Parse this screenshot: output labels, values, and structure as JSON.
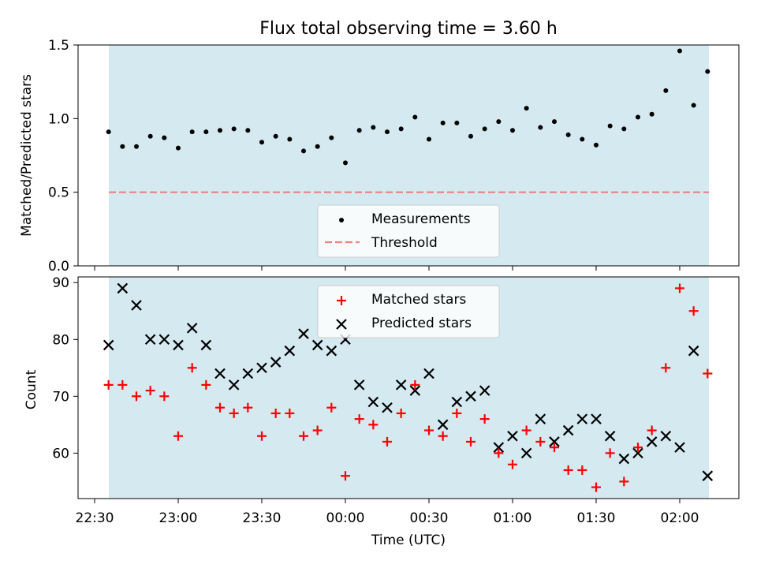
{
  "chart_data": [
    {
      "type": "scatter",
      "title": "Flux total observing time = 3.60 h",
      "ylabel": "Matched/Predicted stars",
      "ylim": [
        0.0,
        1.5
      ],
      "yticks": [
        0.0,
        0.5,
        1.0,
        1.5
      ],
      "ytick_labels": [
        "0.0",
        "0.5",
        "1.0",
        "1.5"
      ],
      "shaded_region_color": "#d4e9f0",
      "threshold": 0.5,
      "legend_position": "lower center",
      "legend": [
        {
          "label": "Measurements",
          "marker": "dot",
          "color": "#000000"
        },
        {
          "label": "Threshold",
          "marker": "dashed-line",
          "color": "#f08080"
        }
      ],
      "series": [
        {
          "name": "Measurements",
          "x": [
            "22:35",
            "22:40",
            "22:45",
            "22:50",
            "22:55",
            "23:00",
            "23:05",
            "23:10",
            "23:15",
            "23:20",
            "23:25",
            "23:30",
            "23:35",
            "23:40",
            "23:45",
            "23:50",
            "23:55",
            "00:00",
            "00:05",
            "00:10",
            "00:15",
            "00:20",
            "00:25",
            "00:30",
            "00:35",
            "00:40",
            "00:45",
            "00:50",
            "00:55",
            "01:00",
            "01:05",
            "01:10",
            "01:15",
            "01:20",
            "01:25",
            "01:30",
            "01:35",
            "01:40",
            "01:45",
            "01:50",
            "01:55",
            "02:00",
            "02:05",
            "02:10"
          ],
          "y": [
            0.91,
            0.81,
            0.81,
            0.88,
            0.87,
            0.8,
            0.91,
            0.91,
            0.92,
            0.93,
            0.92,
            0.84,
            0.88,
            0.86,
            0.78,
            0.81,
            0.87,
            0.7,
            0.92,
            0.94,
            0.91,
            0.93,
            1.01,
            0.86,
            0.97,
            0.97,
            0.88,
            0.93,
            0.98,
            0.92,
            1.07,
            0.94,
            0.98,
            0.89,
            0.86,
            0.82,
            0.95,
            0.93,
            1.01,
            1.03,
            1.19,
            1.46,
            1.09,
            1.32
          ]
        }
      ]
    },
    {
      "type": "scatter",
      "xlabel": "Time (UTC)",
      "ylabel": "Count",
      "ylim": [
        52,
        91
      ],
      "yticks": [
        60,
        70,
        80,
        90
      ],
      "ytick_labels": [
        "60",
        "70",
        "80",
        "90"
      ],
      "xticks": [
        "22:30",
        "23:00",
        "23:30",
        "00:00",
        "00:30",
        "01:00",
        "01:30",
        "02:00"
      ],
      "shaded_region_color": "#d4e9f0",
      "legend_position": "upper center",
      "legend": [
        {
          "label": "Matched stars",
          "marker": "plus",
          "color": "#ff0000"
        },
        {
          "label": "Predicted stars",
          "marker": "x",
          "color": "#000000"
        }
      ],
      "series": [
        {
          "name": "Matched stars",
          "x": [
            "22:35",
            "22:40",
            "22:45",
            "22:50",
            "22:55",
            "23:00",
            "23:05",
            "23:10",
            "23:15",
            "23:20",
            "23:25",
            "23:30",
            "23:35",
            "23:40",
            "23:45",
            "23:50",
            "23:55",
            "00:00",
            "00:05",
            "00:10",
            "00:15",
            "00:20",
            "00:25",
            "00:30",
            "00:35",
            "00:40",
            "00:45",
            "00:50",
            "00:55",
            "01:00",
            "01:05",
            "01:10",
            "01:15",
            "01:20",
            "01:25",
            "01:30",
            "01:35",
            "01:40",
            "01:45",
            "01:50",
            "01:55",
            "02:00",
            "02:05",
            "02:10"
          ],
          "y": [
            72,
            72,
            70,
            71,
            70,
            63,
            75,
            72,
            68,
            67,
            68,
            63,
            67,
            67,
            63,
            64,
            68,
            56,
            66,
            65,
            62,
            67,
            72,
            64,
            63,
            67,
            62,
            66,
            60,
            58,
            64,
            62,
            61,
            57,
            57,
            54,
            60,
            55,
            61,
            64,
            75,
            89,
            85,
            74
          ]
        },
        {
          "name": "Predicted stars",
          "x": [
            "22:35",
            "22:40",
            "22:45",
            "22:50",
            "22:55",
            "23:00",
            "23:05",
            "23:10",
            "23:15",
            "23:20",
            "23:25",
            "23:30",
            "23:35",
            "23:40",
            "23:45",
            "23:50",
            "23:55",
            "00:00",
            "00:05",
            "00:10",
            "00:15",
            "00:20",
            "00:25",
            "00:30",
            "00:35",
            "00:40",
            "00:45",
            "00:50",
            "00:55",
            "01:00",
            "01:05",
            "01:10",
            "01:15",
            "01:20",
            "01:25",
            "01:30",
            "01:35",
            "01:40",
            "01:45",
            "01:50",
            "01:55",
            "02:00",
            "02:05",
            "02:10"
          ],
          "y": [
            79,
            89,
            86,
            80,
            80,
            79,
            82,
            79,
            74,
            72,
            74,
            75,
            76,
            78,
            81,
            79,
            78,
            80,
            72,
            69,
            68,
            72,
            71,
            74,
            65,
            69,
            70,
            71,
            61,
            63,
            60,
            66,
            62,
            64,
            66,
            66,
            63,
            59,
            60,
            62,
            63,
            61,
            78,
            56
          ]
        }
      ]
    }
  ]
}
